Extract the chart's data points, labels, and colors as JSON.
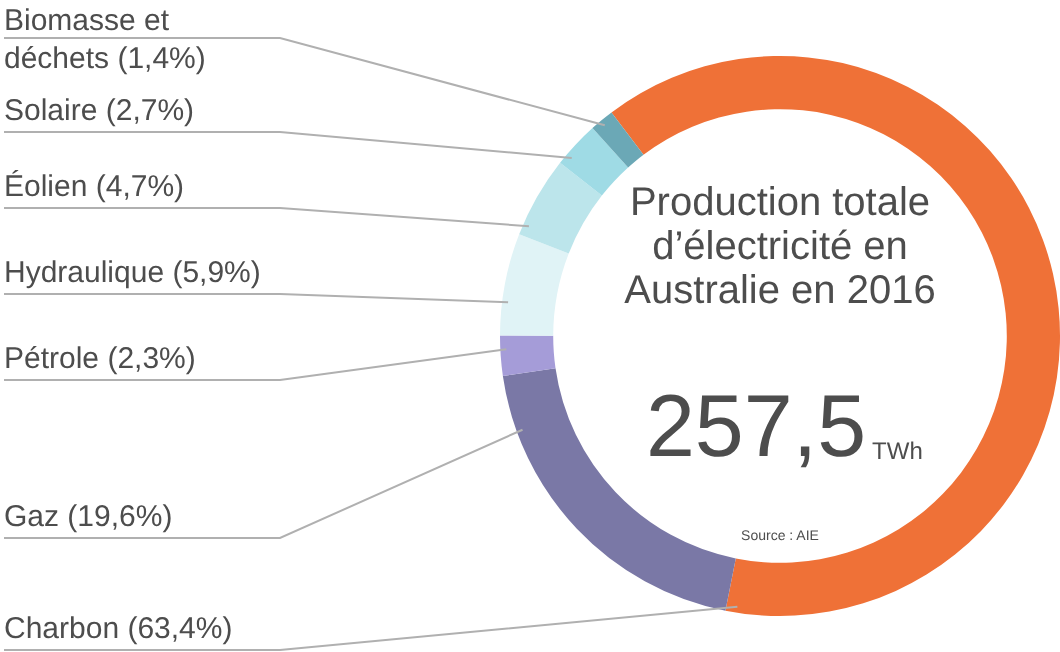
{
  "chart_data": {
    "type": "donut",
    "title": "Production totale d’électricité en Australie en 2016",
    "categories": [
      "Charbon",
      "Gaz",
      "Pétrole",
      "Hydraulique",
      "Éolien",
      "Solaire",
      "Biomasse et déchets"
    ],
    "values": [
      63.4,
      19.6,
      2.3,
      5.9,
      4.7,
      2.7,
      1.4
    ],
    "value_labels": [
      "(63,4%)",
      "(19,6%)",
      "(2,3%)",
      "(5,9%)",
      "(4,7%)",
      "(2,7%)",
      "(1,4%)"
    ],
    "colors": [
      "#ef7137",
      "#7a78a6",
      "#a59cd8",
      "#e0f3f6",
      "#bce5eb",
      "#9fdbe5",
      "#6ba8b6"
    ],
    "legend": false,
    "annotations": [
      "257,5",
      "TWh",
      "Source : AIE"
    ]
  }
}
